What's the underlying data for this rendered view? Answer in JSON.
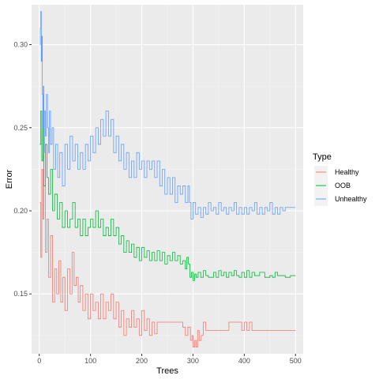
{
  "chart_data": {
    "type": "line",
    "title": "",
    "xlabel": "Trees",
    "ylabel": "Error",
    "xlim": [
      -15,
      515
    ],
    "ylim": [
      0.114,
      0.324
    ],
    "x_ticks": [
      0,
      100,
      200,
      300,
      400,
      500
    ],
    "x_tick_labels": [
      "0",
      "100",
      "200",
      "300",
      "400",
      "500"
    ],
    "y_ticks": [
      0.15,
      0.2,
      0.25,
      0.3
    ],
    "y_tick_labels": [
      "0.15",
      "0.20",
      "0.25",
      "0.30"
    ],
    "grid": true,
    "legend": {
      "title": "Type",
      "placement": "right"
    },
    "series": [
      {
        "name": "Healthy",
        "color": "#F8766D",
        "points": [
          [
            1,
            0.205
          ],
          [
            3,
            0.172
          ],
          [
            5,
            0.225
          ],
          [
            7,
            0.195
          ],
          [
            9,
            0.215
          ],
          [
            12,
            0.175
          ],
          [
            15,
            0.195
          ],
          [
            18,
            0.16
          ],
          [
            22,
            0.185
          ],
          [
            26,
            0.145
          ],
          [
            30,
            0.165
          ],
          [
            34,
            0.15
          ],
          [
            38,
            0.17
          ],
          [
            42,
            0.145
          ],
          [
            46,
            0.16
          ],
          [
            50,
            0.14
          ],
          [
            55,
            0.165
          ],
          [
            60,
            0.15
          ],
          [
            64,
            0.175
          ],
          [
            68,
            0.155
          ],
          [
            72,
            0.16
          ],
          [
            76,
            0.145
          ],
          [
            80,
            0.155
          ],
          [
            85,
            0.14
          ],
          [
            90,
            0.15
          ],
          [
            95,
            0.135
          ],
          [
            100,
            0.15
          ],
          [
            105,
            0.14
          ],
          [
            110,
            0.145
          ],
          [
            115,
            0.135
          ],
          [
            120,
            0.15
          ],
          [
            125,
            0.135
          ],
          [
            130,
            0.145
          ],
          [
            135,
            0.14
          ],
          [
            140,
            0.15
          ],
          [
            145,
            0.135
          ],
          [
            150,
            0.145
          ],
          [
            155,
            0.13
          ],
          [
            160,
            0.14
          ],
          [
            165,
            0.125
          ],
          [
            170,
            0.135
          ],
          [
            175,
            0.13
          ],
          [
            180,
            0.14
          ],
          [
            185,
            0.13
          ],
          [
            190,
            0.135
          ],
          [
            195,
            0.125
          ],
          [
            200,
            0.14
          ],
          [
            205,
            0.128
          ],
          [
            210,
            0.135
          ],
          [
            215,
            0.125
          ],
          [
            220,
            0.133
          ],
          [
            225,
            0.126
          ],
          [
            230,
            0.133
          ],
          [
            240,
            0.133
          ],
          [
            250,
            0.133
          ],
          [
            260,
            0.133
          ],
          [
            270,
            0.133
          ],
          [
            280,
            0.13
          ],
          [
            285,
            0.125
          ],
          [
            290,
            0.13
          ],
          [
            295,
            0.122
          ],
          [
            298,
            0.125
          ],
          [
            300,
            0.118
          ],
          [
            303,
            0.122
          ],
          [
            306,
            0.118
          ],
          [
            309,
            0.128
          ],
          [
            312,
            0.122
          ],
          [
            316,
            0.125
          ],
          [
            320,
            0.133
          ],
          [
            325,
            0.128
          ],
          [
            330,
            0.128
          ],
          [
            340,
            0.128
          ],
          [
            350,
            0.128
          ],
          [
            360,
            0.128
          ],
          [
            370,
            0.133
          ],
          [
            380,
            0.133
          ],
          [
            390,
            0.133
          ],
          [
            395,
            0.128
          ],
          [
            400,
            0.133
          ],
          [
            405,
            0.128
          ],
          [
            410,
            0.133
          ],
          [
            415,
            0.128
          ],
          [
            420,
            0.128
          ],
          [
            440,
            0.128
          ],
          [
            460,
            0.128
          ],
          [
            480,
            0.128
          ],
          [
            500,
            0.128
          ]
        ]
      },
      {
        "name": "OOB",
        "color": "#00BA38",
        "points": [
          [
            1,
            0.24
          ],
          [
            3,
            0.26
          ],
          [
            5,
            0.23
          ],
          [
            7,
            0.25
          ],
          [
            9,
            0.215
          ],
          [
            12,
            0.24
          ],
          [
            15,
            0.22
          ],
          [
            18,
            0.21
          ],
          [
            22,
            0.225
          ],
          [
            26,
            0.2
          ],
          [
            30,
            0.21
          ],
          [
            35,
            0.195
          ],
          [
            40,
            0.205
          ],
          [
            45,
            0.19
          ],
          [
            50,
            0.2
          ],
          [
            55,
            0.19
          ],
          [
            60,
            0.195
          ],
          [
            65,
            0.205
          ],
          [
            70,
            0.19
          ],
          [
            75,
            0.195
          ],
          [
            80,
            0.185
          ],
          [
            85,
            0.195
          ],
          [
            90,
            0.185
          ],
          [
            95,
            0.19
          ],
          [
            100,
            0.195
          ],
          [
            105,
            0.19
          ],
          [
            110,
            0.2
          ],
          [
            115,
            0.19
          ],
          [
            120,
            0.195
          ],
          [
            125,
            0.185
          ],
          [
            130,
            0.19
          ],
          [
            135,
            0.185
          ],
          [
            140,
            0.195
          ],
          [
            145,
            0.185
          ],
          [
            150,
            0.19
          ],
          [
            155,
            0.18
          ],
          [
            160,
            0.185
          ],
          [
            165,
            0.175
          ],
          [
            170,
            0.182
          ],
          [
            175,
            0.175
          ],
          [
            180,
            0.18
          ],
          [
            185,
            0.172
          ],
          [
            190,
            0.178
          ],
          [
            195,
            0.17
          ],
          [
            200,
            0.178
          ],
          [
            205,
            0.172
          ],
          [
            210,
            0.176
          ],
          [
            215,
            0.17
          ],
          [
            220,
            0.175
          ],
          [
            225,
            0.17
          ],
          [
            230,
            0.176
          ],
          [
            235,
            0.17
          ],
          [
            240,
            0.175
          ],
          [
            245,
            0.168
          ],
          [
            250,
            0.173
          ],
          [
            255,
            0.17
          ],
          [
            260,
            0.175
          ],
          [
            265,
            0.17
          ],
          [
            270,
            0.173
          ],
          [
            275,
            0.168
          ],
          [
            280,
            0.17
          ],
          [
            285,
            0.165
          ],
          [
            288,
            0.172
          ],
          [
            291,
            0.168
          ],
          [
            294,
            0.16
          ],
          [
            297,
            0.163
          ],
          [
            300,
            0.158
          ],
          [
            303,
            0.162
          ],
          [
            306,
            0.16
          ],
          [
            310,
            0.163
          ],
          [
            315,
            0.16
          ],
          [
            320,
            0.164
          ],
          [
            325,
            0.161
          ],
          [
            330,
            0.16
          ],
          [
            340,
            0.163
          ],
          [
            345,
            0.16
          ],
          [
            350,
            0.164
          ],
          [
            355,
            0.161
          ],
          [
            360,
            0.163
          ],
          [
            365,
            0.16
          ],
          [
            370,
            0.163
          ],
          [
            375,
            0.161
          ],
          [
            380,
            0.164
          ],
          [
            385,
            0.161
          ],
          [
            390,
            0.16
          ],
          [
            395,
            0.163
          ],
          [
            400,
            0.16
          ],
          [
            405,
            0.164
          ],
          [
            410,
            0.16
          ],
          [
            415,
            0.163
          ],
          [
            420,
            0.161
          ],
          [
            430,
            0.163
          ],
          [
            440,
            0.16
          ],
          [
            450,
            0.161
          ],
          [
            455,
            0.16
          ],
          [
            460,
            0.163
          ],
          [
            465,
            0.161
          ],
          [
            470,
            0.161
          ],
          [
            480,
            0.16
          ],
          [
            490,
            0.161
          ],
          [
            500,
            0.161
          ]
        ]
      },
      {
        "name": "Unhealthy",
        "color": "#619CFF",
        "points": [
          [
            1,
            0.3
          ],
          [
            2,
            0.31
          ],
          [
            3,
            0.32
          ],
          [
            4,
            0.29
          ],
          [
            5,
            0.305
          ],
          [
            6,
            0.27
          ],
          [
            7,
            0.25
          ],
          [
            8,
            0.275
          ],
          [
            9,
            0.235
          ],
          [
            10,
            0.26
          ],
          [
            12,
            0.245
          ],
          [
            14,
            0.27
          ],
          [
            16,
            0.25
          ],
          [
            18,
            0.235
          ],
          [
            20,
            0.26
          ],
          [
            22,
            0.24
          ],
          [
            25,
            0.25
          ],
          [
            28,
            0.225
          ],
          [
            32,
            0.24
          ],
          [
            36,
            0.22
          ],
          [
            40,
            0.235
          ],
          [
            45,
            0.215
          ],
          [
            50,
            0.24
          ],
          [
            55,
            0.225
          ],
          [
            60,
            0.245
          ],
          [
            65,
            0.23
          ],
          [
            70,
            0.24
          ],
          [
            75,
            0.225
          ],
          [
            80,
            0.235
          ],
          [
            85,
            0.225
          ],
          [
            90,
            0.24
          ],
          [
            95,
            0.23
          ],
          [
            100,
            0.245
          ],
          [
            105,
            0.235
          ],
          [
            110,
            0.25
          ],
          [
            115,
            0.24
          ],
          [
            120,
            0.255
          ],
          [
            125,
            0.245
          ],
          [
            130,
            0.26
          ],
          [
            135,
            0.245
          ],
          [
            140,
            0.255
          ],
          [
            145,
            0.235
          ],
          [
            150,
            0.245
          ],
          [
            155,
            0.23
          ],
          [
            160,
            0.24
          ],
          [
            165,
            0.225
          ],
          [
            170,
            0.235
          ],
          [
            175,
            0.22
          ],
          [
            180,
            0.23
          ],
          [
            185,
            0.22
          ],
          [
            190,
            0.235
          ],
          [
            195,
            0.225
          ],
          [
            200,
            0.23
          ],
          [
            205,
            0.22
          ],
          [
            210,
            0.23
          ],
          [
            215,
            0.225
          ],
          [
            220,
            0.23
          ],
          [
            225,
            0.22
          ],
          [
            230,
            0.23
          ],
          [
            235,
            0.215
          ],
          [
            240,
            0.225
          ],
          [
            245,
            0.21
          ],
          [
            250,
            0.22
          ],
          [
            255,
            0.21
          ],
          [
            260,
            0.22
          ],
          [
            265,
            0.205
          ],
          [
            270,
            0.215
          ],
          [
            275,
            0.21
          ],
          [
            280,
            0.215
          ],
          [
            285,
            0.205
          ],
          [
            290,
            0.215
          ],
          [
            293,
            0.205
          ],
          [
            296,
            0.195
          ],
          [
            300,
            0.205
          ],
          [
            305,
            0.198
          ],
          [
            310,
            0.202
          ],
          [
            315,
            0.196
          ],
          [
            320,
            0.202
          ],
          [
            325,
            0.198
          ],
          [
            330,
            0.205
          ],
          [
            335,
            0.2
          ],
          [
            340,
            0.202
          ],
          [
            345,
            0.198
          ],
          [
            350,
            0.205
          ],
          [
            355,
            0.2
          ],
          [
            360,
            0.202
          ],
          [
            365,
            0.198
          ],
          [
            370,
            0.202
          ],
          [
            375,
            0.2
          ],
          [
            380,
            0.205
          ],
          [
            385,
            0.198
          ],
          [
            390,
            0.202
          ],
          [
            395,
            0.198
          ],
          [
            400,
            0.202
          ],
          [
            405,
            0.198
          ],
          [
            410,
            0.202
          ],
          [
            415,
            0.2
          ],
          [
            420,
            0.205
          ],
          [
            425,
            0.198
          ],
          [
            430,
            0.202
          ],
          [
            435,
            0.198
          ],
          [
            440,
            0.202
          ],
          [
            445,
            0.2
          ],
          [
            450,
            0.205
          ],
          [
            455,
            0.198
          ],
          [
            460,
            0.202
          ],
          [
            465,
            0.198
          ],
          [
            470,
            0.202
          ],
          [
            475,
            0.2
          ],
          [
            480,
            0.202
          ],
          [
            490,
            0.202
          ],
          [
            500,
            0.202
          ]
        ]
      }
    ]
  }
}
